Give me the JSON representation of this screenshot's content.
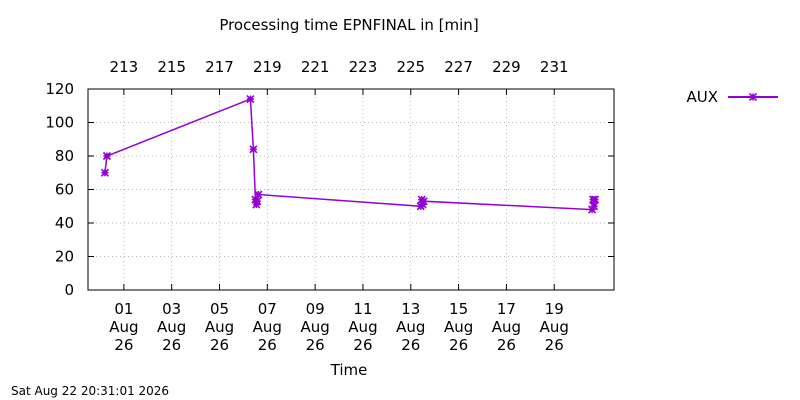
{
  "chart_data": {
    "type": "line",
    "title": "Processing time EPNFINAL in [min]",
    "xlabel": "Time",
    "ylabel": "",
    "ylim": [
      0,
      120
    ],
    "yticks": [
      "0",
      "20",
      "40",
      "60",
      "80",
      "100",
      "120"
    ],
    "x_date_range": [
      "2026-07-30T12:00",
      "2026-08-21T12:00"
    ],
    "x_ticks_bottom": [
      {
        "date": "2026-08-01",
        "label": [
          "01",
          "Aug",
          "26"
        ]
      },
      {
        "date": "2026-08-03",
        "label": [
          "03",
          "Aug",
          "26"
        ]
      },
      {
        "date": "2026-08-05",
        "label": [
          "05",
          "Aug",
          "26"
        ]
      },
      {
        "date": "2026-08-07",
        "label": [
          "07",
          "Aug",
          "26"
        ]
      },
      {
        "date": "2026-08-09",
        "label": [
          "09",
          "Aug",
          "26"
        ]
      },
      {
        "date": "2026-08-11",
        "label": [
          "11",
          "Aug",
          "26"
        ]
      },
      {
        "date": "2026-08-13",
        "label": [
          "13",
          "Aug",
          "26"
        ]
      },
      {
        "date": "2026-08-15",
        "label": [
          "15",
          "Aug",
          "26"
        ]
      },
      {
        "date": "2026-08-17",
        "label": [
          "17",
          "Aug",
          "26"
        ]
      },
      {
        "date": "2026-08-19",
        "label": [
          "19",
          "Aug",
          "26"
        ]
      }
    ],
    "x_ticks_top": [
      {
        "date": "2026-08-01",
        "label": "213"
      },
      {
        "date": "2026-08-03",
        "label": "215"
      },
      {
        "date": "2026-08-05",
        "label": "217"
      },
      {
        "date": "2026-08-07",
        "label": "219"
      },
      {
        "date": "2026-08-09",
        "label": "221"
      },
      {
        "date": "2026-08-11",
        "label": "223"
      },
      {
        "date": "2026-08-13",
        "label": "225"
      },
      {
        "date": "2026-08-15",
        "label": "227"
      },
      {
        "date": "2026-08-17",
        "label": "229"
      },
      {
        "date": "2026-08-19",
        "label": "231"
      }
    ],
    "grid": true,
    "legend_position": "top-right",
    "series": [
      {
        "name": "AUX",
        "color": "#9400d3",
        "marker": "x-star",
        "points": [
          {
            "x": "2026-07-31T05:00",
            "y": 70
          },
          {
            "x": "2026-07-31T07:00",
            "y": 80
          },
          {
            "x": "2026-08-06T07:00",
            "y": 114
          },
          {
            "x": "2026-08-06T10:00",
            "y": 84
          },
          {
            "x": "2026-08-06T12:00",
            "y": 54
          },
          {
            "x": "2026-08-06T13:00",
            "y": 51
          },
          {
            "x": "2026-08-06T14:00",
            "y": 53
          },
          {
            "x": "2026-08-06T15:00",
            "y": 57
          },
          {
            "x": "2026-08-13T10:00",
            "y": 50
          },
          {
            "x": "2026-08-13T11:00",
            "y": 54
          },
          {
            "x": "2026-08-13T12:00",
            "y": 51
          },
          {
            "x": "2026-08-13T13:00",
            "y": 53
          },
          {
            "x": "2026-08-20T14:00",
            "y": 48
          },
          {
            "x": "2026-08-20T15:00",
            "y": 54
          },
          {
            "x": "2026-08-20T16:00",
            "y": 50
          },
          {
            "x": "2026-08-20T17:00",
            "y": 54
          }
        ]
      }
    ]
  },
  "footer": {
    "timestamp": "Sat Aug 22 20:31:01 2026"
  }
}
